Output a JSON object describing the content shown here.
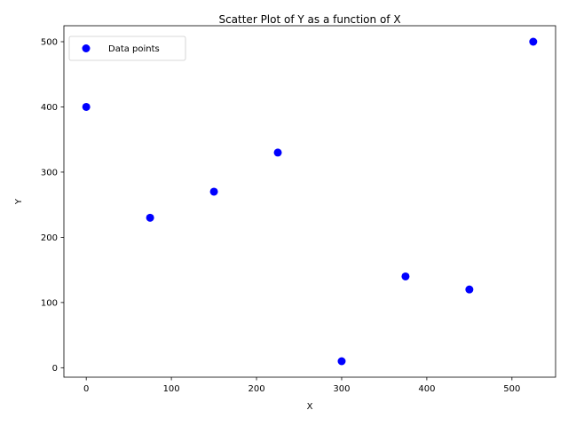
{
  "chart_data": {
    "type": "scatter",
    "title": "Scatter Plot of  Y as a function of X",
    "xlabel": "X",
    "ylabel": "Y",
    "xlim": [
      -26.25,
      551.25
    ],
    "ylim": [
      -14.5,
      524.5
    ],
    "xticks": [
      0,
      100,
      200,
      300,
      400,
      500
    ],
    "yticks": [
      0,
      100,
      200,
      300,
      400,
      500
    ],
    "grid": false,
    "legend_position": "top-left",
    "series": [
      {
        "name": "Data points",
        "color": "#0000ff",
        "x": [
          0,
          75,
          150,
          225,
          300,
          375,
          450,
          525
        ],
        "y": [
          400,
          230,
          270,
          330,
          10,
          140,
          120,
          500
        ]
      }
    ]
  }
}
